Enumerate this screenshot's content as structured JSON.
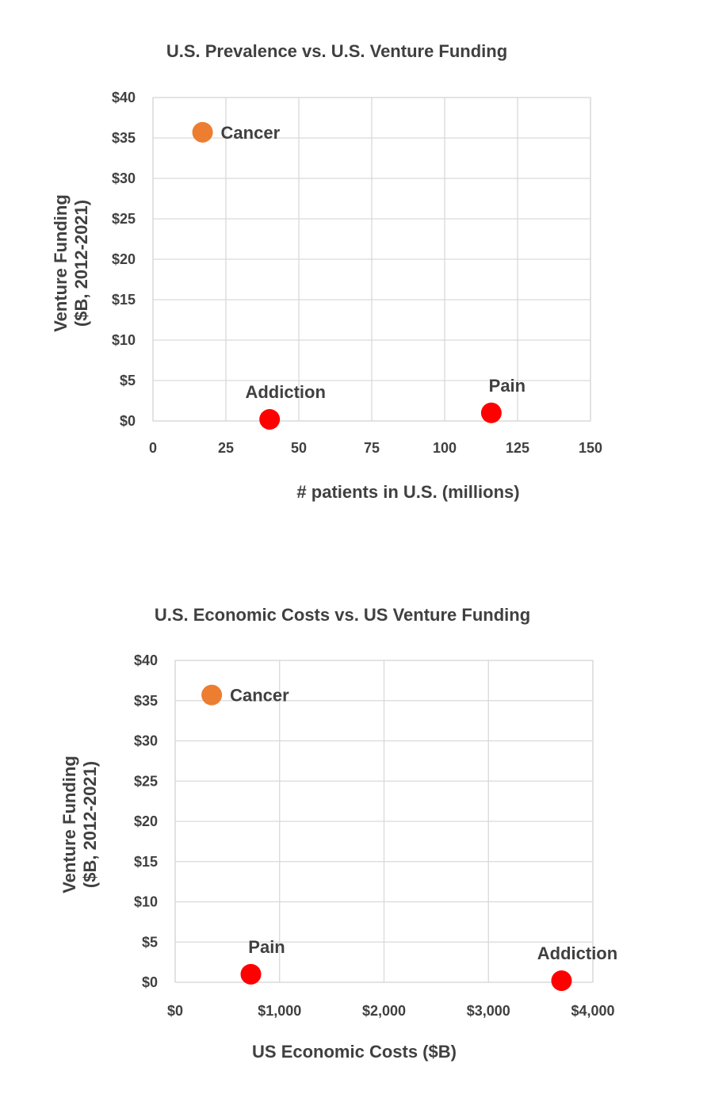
{
  "chart_data": [
    {
      "type": "scatter",
      "title": "U.S. Prevalence vs. U.S. Venture Funding",
      "xlabel": "# patients in U.S. (millions)",
      "ylabel_lines": [
        "Venture Funding",
        "($B, 2012-2021)"
      ],
      "xlim": [
        0,
        150
      ],
      "ylim": [
        0,
        40
      ],
      "x_ticks": [
        0,
        25,
        50,
        75,
        100,
        125,
        150
      ],
      "x_tick_labels": [
        "0",
        "25",
        "50",
        "75",
        "100",
        "125",
        "150"
      ],
      "y_ticks": [
        0,
        5,
        10,
        15,
        20,
        25,
        30,
        35,
        40
      ],
      "y_tick_labels": [
        "$0",
        "$5",
        "$10",
        "$15",
        "$20",
        "$25",
        "$30",
        "$35",
        "$40"
      ],
      "grid": true,
      "points": [
        {
          "label": "Cancer",
          "x": 17,
          "y": 35.7,
          "color": "#ed7d31",
          "label_pos": "right"
        },
        {
          "label": "Addiction",
          "x": 40,
          "y": 0.2,
          "color": "#ff0000",
          "label_pos": "above"
        },
        {
          "label": "Pain",
          "x": 116,
          "y": 1.0,
          "color": "#ff0000",
          "label_pos": "above"
        }
      ]
    },
    {
      "type": "scatter",
      "title": "U.S. Economic Costs vs. US Venture Funding",
      "xlabel": "US Economic Costs ($B)",
      "ylabel_lines": [
        "Venture Funding",
        "($B, 2012-2021)"
      ],
      "xlim": [
        0,
        4000
      ],
      "ylim": [
        0,
        40
      ],
      "x_ticks": [
        0,
        1000,
        2000,
        3000,
        4000
      ],
      "x_tick_labels": [
        "$0",
        "$1,000",
        "$2,000",
        "$3,000",
        "$4,000"
      ],
      "y_ticks": [
        0,
        5,
        10,
        15,
        20,
        25,
        30,
        35,
        40
      ],
      "y_tick_labels": [
        "$0",
        "$5",
        "$10",
        "$15",
        "$20",
        "$25",
        "$30",
        "$35",
        "$40"
      ],
      "grid": true,
      "points": [
        {
          "label": "Cancer",
          "x": 350,
          "y": 35.7,
          "color": "#ed7d31",
          "label_pos": "right"
        },
        {
          "label": "Pain",
          "x": 725,
          "y": 1.0,
          "color": "#ff0000",
          "label_pos": "above"
        },
        {
          "label": "Addiction",
          "x": 3700,
          "y": 0.2,
          "color": "#ff0000",
          "label_pos": "above"
        }
      ]
    }
  ]
}
